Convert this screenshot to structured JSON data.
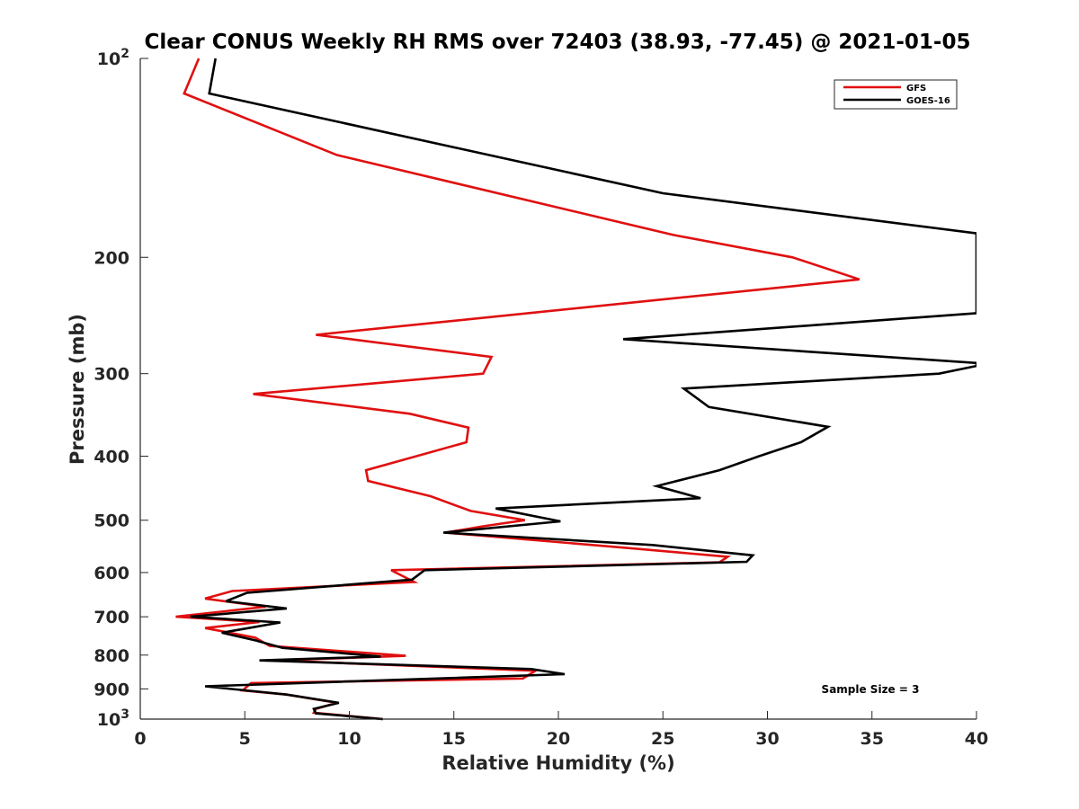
{
  "chart_data": {
    "type": "line",
    "title": "Clear CONUS Weekly RH RMS over 72403 (38.93, -77.45) @ 2021-01-05",
    "xlabel": "Relative Humidity (%)",
    "ylabel": "Pressure (mb)",
    "xlim": [
      0,
      40
    ],
    "ylim": [
      100,
      1000
    ],
    "y_scale": "log",
    "y_reversed": true,
    "grid": false,
    "legend_position": "top-right",
    "x_ticks": [
      "0",
      "5",
      "10",
      "15",
      "20",
      "25",
      "30",
      "35",
      "40"
    ],
    "y_ticks": [
      {
        "value": 100,
        "base": "10",
        "exp": "2"
      },
      {
        "value": 200,
        "label": "200"
      },
      {
        "value": 300,
        "label": "300"
      },
      {
        "value": 400,
        "label": "400"
      },
      {
        "value": 500,
        "label": "500"
      },
      {
        "value": 600,
        "label": "600"
      },
      {
        "value": 700,
        "label": "700"
      },
      {
        "value": 800,
        "label": "800"
      },
      {
        "value": 900,
        "label": "900"
      },
      {
        "value": 1000,
        "base": "10",
        "exp": "3"
      }
    ],
    "annotation": "Sample Size = 3",
    "series": [
      {
        "name": "GFS",
        "color": "#e01010",
        "points": [
          [
            2.8,
            100
          ],
          [
            2.1,
            113
          ],
          [
            9.4,
            140
          ],
          [
            25.5,
            185
          ],
          [
            31.2,
            200
          ],
          [
            34.4,
            216
          ],
          [
            8.4,
            262
          ],
          [
            16.8,
            283
          ],
          [
            16.4,
            300
          ],
          [
            5.4,
            322
          ],
          [
            12.9,
            345
          ],
          [
            15.7,
            362
          ],
          [
            15.6,
            381
          ],
          [
            10.8,
            420
          ],
          [
            10.9,
            436
          ],
          [
            13.9,
            460
          ],
          [
            15.8,
            484
          ],
          [
            18.4,
            500
          ],
          [
            16.5,
            510
          ],
          [
            14.6,
            522
          ],
          [
            23.1,
            550
          ],
          [
            28.1,
            568
          ],
          [
            27.7,
            579
          ],
          [
            12.0,
            595
          ],
          [
            13.1,
            620
          ],
          [
            4.4,
            640
          ],
          [
            3.1,
            657
          ],
          [
            6.0,
            676
          ],
          [
            1.7,
            700
          ],
          [
            5.7,
            713
          ],
          [
            3.1,
            728
          ],
          [
            5.5,
            753
          ],
          [
            6.2,
            775
          ],
          [
            12.7,
            802
          ],
          [
            6.5,
            815
          ],
          [
            18.9,
            845
          ],
          [
            18.3,
            868
          ],
          [
            5.3,
            882
          ],
          [
            4.9,
            905
          ],
          [
            7.0,
            918
          ],
          [
            9.4,
            945
          ],
          [
            8.4,
            965
          ],
          [
            8.3,
            978
          ],
          [
            11.6,
            1000
          ]
        ]
      },
      {
        "name": "GOES-16",
        "color": "#000000",
        "points": [
          [
            3.6,
            100
          ],
          [
            3.3,
            113
          ],
          [
            25.0,
            160
          ],
          [
            40.0,
            184
          ],
          [
            40.0,
            243
          ],
          [
            23.1,
            266
          ],
          [
            40.0,
            289
          ],
          [
            40.0,
            292
          ],
          [
            38.2,
            300
          ],
          [
            26.0,
            316
          ],
          [
            27.2,
            337
          ],
          [
            32.9,
            361
          ],
          [
            31.6,
            381
          ],
          [
            29.6,
            400
          ],
          [
            27.7,
            420
          ],
          [
            24.7,
            444
          ],
          [
            26.8,
            463
          ],
          [
            17.0,
            480
          ],
          [
            20.1,
            502
          ],
          [
            14.5,
            522
          ],
          [
            24.5,
            545
          ],
          [
            29.3,
            565
          ],
          [
            29.0,
            578
          ],
          [
            13.6,
            595
          ],
          [
            13.0,
            615
          ],
          [
            5.1,
            644
          ],
          [
            4.1,
            663
          ],
          [
            7.0,
            680
          ],
          [
            2.4,
            700
          ],
          [
            6.7,
            714
          ],
          [
            3.9,
            740
          ],
          [
            5.5,
            760
          ],
          [
            6.8,
            780
          ],
          [
            11.5,
            804
          ],
          [
            5.7,
            815
          ],
          [
            18.7,
            840
          ],
          [
            20.3,
            855
          ],
          [
            3.1,
            892
          ],
          [
            7.0,
            918
          ],
          [
            9.5,
            945
          ],
          [
            8.3,
            965
          ],
          [
            8.4,
            980
          ],
          [
            11.6,
            1000
          ]
        ]
      }
    ]
  }
}
